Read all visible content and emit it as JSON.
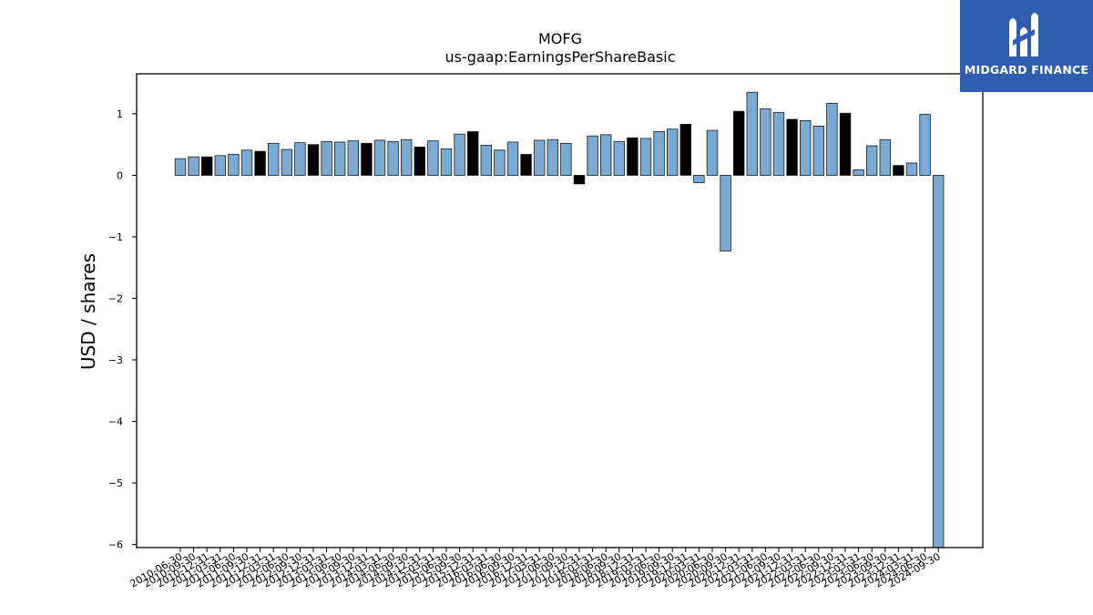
{
  "chart_data": {
    "type": "bar",
    "title": "MOFG",
    "subtitle": "us-gaap:EarningsPerShareBasic",
    "xlabel": "",
    "ylabel": "USD / shares",
    "ylim": [
      -6.05,
      1.65
    ],
    "yticks": [
      1,
      0,
      -1,
      -2,
      -3,
      -4,
      -5,
      -6
    ],
    "ytick_labels": [
      "1",
      "0",
      "−1",
      "−2",
      "−3",
      "−4",
      "−5",
      "−6"
    ],
    "grid": false,
    "legend": "none",
    "colors": {
      "annual": "#000000",
      "quarterly": "#7aaad4",
      "edge": "#1a1a1a"
    },
    "categories": [
      "2010-06-30",
      "2010-09-30",
      "2010-12-31",
      "2011-03-31",
      "2011-06-30",
      "2011-09-30",
      "2011-12-31",
      "2012-03-31",
      "2012-06-30",
      "2012-09-30",
      "2012-12-31",
      "2013-03-31",
      "2013-06-30",
      "2013-09-30",
      "2013-12-31",
      "2014-03-31",
      "2014-06-30",
      "2014-09-30",
      "2014-12-31",
      "2015-03-31",
      "2015-06-30",
      "2015-09-30",
      "2015-12-31",
      "2016-03-31",
      "2016-06-30",
      "2016-09-30",
      "2016-12-31",
      "2017-03-31",
      "2017-06-30",
      "2017-09-30",
      "2017-12-31",
      "2018-03-31",
      "2018-06-30",
      "2018-09-30",
      "2018-12-31",
      "2019-03-31",
      "2019-06-30",
      "2019-09-30",
      "2019-12-31",
      "2020-03-31",
      "2020-06-30",
      "2020-09-30",
      "2020-12-31",
      "2021-03-31",
      "2021-06-30",
      "2021-09-30",
      "2021-12-31",
      "2022-03-31",
      "2022-06-30",
      "2022-09-30",
      "2022-12-31",
      "2023-03-31",
      "2023-06-30",
      "2023-09-30",
      "2023-12-31",
      "2024-03-31",
      "2024-06-30",
      "2024-09-30"
    ],
    "values": [
      0.27,
      0.3,
      0.3,
      0.32,
      0.34,
      0.41,
      0.39,
      0.52,
      0.42,
      0.53,
      0.5,
      0.55,
      0.54,
      0.56,
      0.52,
      0.57,
      0.55,
      0.58,
      0.46,
      0.56,
      0.43,
      0.67,
      0.71,
      0.49,
      0.41,
      0.54,
      0.34,
      0.57,
      0.58,
      0.52,
      -0.14,
      0.64,
      0.66,
      0.55,
      0.61,
      0.6,
      0.71,
      0.75,
      0.83,
      -0.12,
      0.73,
      -1.23,
      1.04,
      1.35,
      1.08,
      1.02,
      0.91,
      0.89,
      0.8,
      1.17,
      1.01,
      0.09,
      0.48,
      0.58,
      0.16,
      0.2,
      0.99,
      -6.05
    ],
    "annual_flags": [
      0,
      0,
      1,
      0,
      0,
      0,
      1,
      0,
      0,
      0,
      1,
      0,
      0,
      0,
      1,
      0,
      0,
      0,
      1,
      0,
      0,
      0,
      1,
      0,
      0,
      0,
      1,
      0,
      0,
      0,
      1,
      0,
      0,
      0,
      1,
      0,
      0,
      0,
      1,
      0,
      0,
      0,
      1,
      0,
      0,
      0,
      1,
      0,
      0,
      0,
      1,
      0,
      0,
      0,
      1,
      0,
      0,
      0
    ]
  },
  "logo": {
    "text": "MIDGARD FINANCE",
    "icon": "midgard-logo-icon"
  }
}
